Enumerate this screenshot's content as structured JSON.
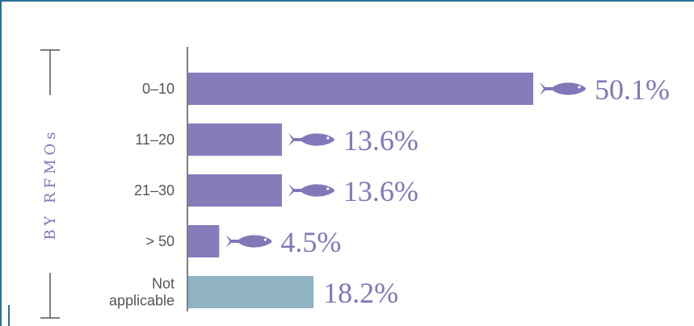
{
  "chart_data": {
    "type": "bar",
    "orientation": "horizontal",
    "group_label": "BY RFMOs",
    "categories": [
      [
        "0–10"
      ],
      [
        "11–20"
      ],
      [
        "21–30"
      ],
      [
        "> 50"
      ],
      [
        "Not",
        "applicable"
      ]
    ],
    "values": [
      50.1,
      13.6,
      13.6,
      4.5,
      18.2
    ],
    "value_labels": [
      "50.1%",
      "13.6%",
      "13.6%",
      "4.5%",
      "18.2%"
    ],
    "fish_marker": [
      true,
      true,
      true,
      true,
      false
    ],
    "bar_colors": [
      "#857dbb",
      "#857dbb",
      "#857dbb",
      "#857dbb",
      "#8fb3c3"
    ],
    "label_colors": [
      "#8078b8",
      "#8078b8",
      "#8078b8",
      "#8078b8",
      "#8fb3c3"
    ],
    "icon": "fish-icon",
    "xlim": [
      0,
      50.1
    ],
    "grid": false,
    "legend": "none"
  }
}
